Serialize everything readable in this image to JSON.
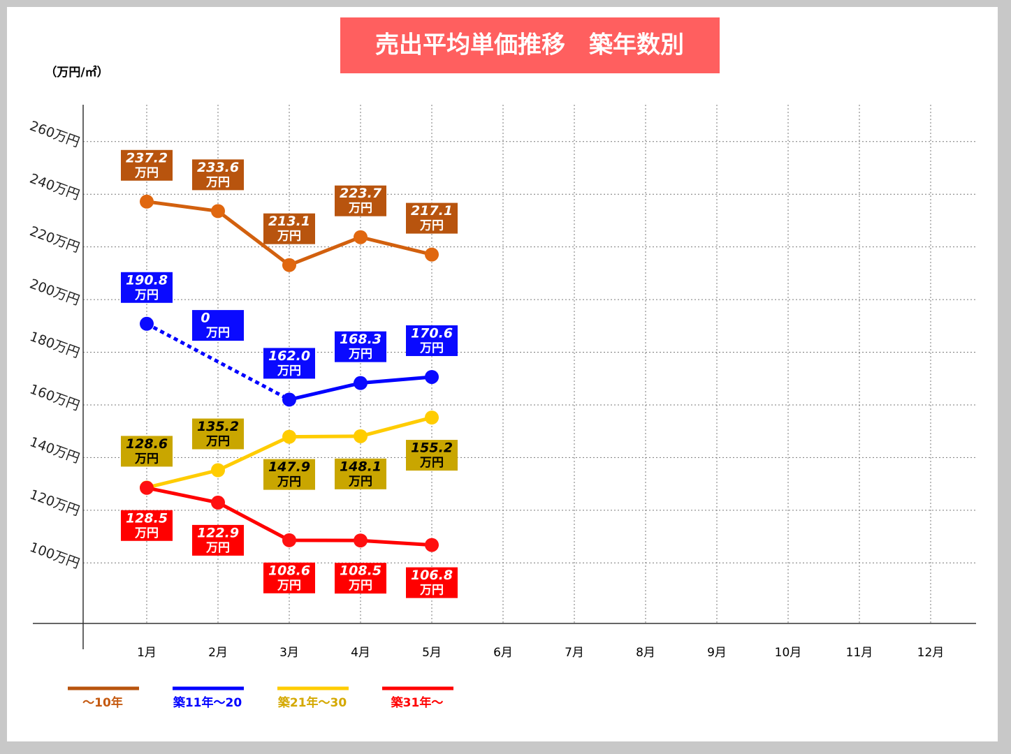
{
  "chart_data": {
    "type": "line",
    "title": "売出平均単価推移　築年数別",
    "y_axis_label": "（万円/㎡）",
    "value_unit": "万円",
    "categories": [
      "1月",
      "2月",
      "3月",
      "4月",
      "5月",
      "6月",
      "7月",
      "8月",
      "9月",
      "10月",
      "11月",
      "12月"
    ],
    "ylim": [
      77,
      274
    ],
    "yticks": [
      {
        "value": 100,
        "label": "100万円"
      },
      {
        "value": 120,
        "label": "120万円"
      },
      {
        "value": 140,
        "label": "140万円"
      },
      {
        "value": 160,
        "label": "160万円"
      },
      {
        "value": 180,
        "label": "180万円"
      },
      {
        "value": 200,
        "label": "200万円"
      },
      {
        "value": 220,
        "label": "220万円"
      },
      {
        "value": 240,
        "label": "240万円"
      },
      {
        "value": 260,
        "label": "260万円"
      }
    ],
    "grid": true,
    "series": [
      {
        "name": "～10年",
        "color": "#c55a11",
        "values": [
          237.2,
          233.6,
          213.1,
          223.7,
          217.1,
          null,
          null,
          null,
          null,
          null,
          null,
          null
        ],
        "value_labels": [
          "237.2",
          "233.6",
          "213.1",
          "223.7",
          "217.1",
          null,
          null,
          null,
          null,
          null,
          null,
          null
        ]
      },
      {
        "name": "築11年～20",
        "color": "#0000ff",
        "values": [
          190.8,
          0,
          162.0,
          168.3,
          170.6,
          null,
          null,
          null,
          null,
          null,
          null,
          null
        ],
        "value_labels": [
          "190.8",
          "0",
          "162.0",
          "168.3",
          "170.6",
          null,
          null,
          null,
          null,
          null,
          null,
          null
        ]
      },
      {
        "name": "築21年～30",
        "color": "#ffcc00",
        "values": [
          128.6,
          135.2,
          147.9,
          148.1,
          155.2,
          null,
          null,
          null,
          null,
          null,
          null,
          null
        ],
        "value_labels": [
          "128.6",
          "135.2",
          "147.9",
          "148.1",
          "155.2",
          null,
          null,
          null,
          null,
          null,
          null,
          null
        ]
      },
      {
        "name": "築31年～",
        "color": "#ff0000",
        "values": [
          128.5,
          122.9,
          108.6,
          108.5,
          106.8,
          null,
          null,
          null,
          null,
          null,
          null,
          null
        ],
        "value_labels": [
          "128.5",
          "122.9",
          "108.6",
          "108.5",
          "106.8",
          null,
          null,
          null,
          null,
          null,
          null,
          null
        ]
      }
    ]
  }
}
